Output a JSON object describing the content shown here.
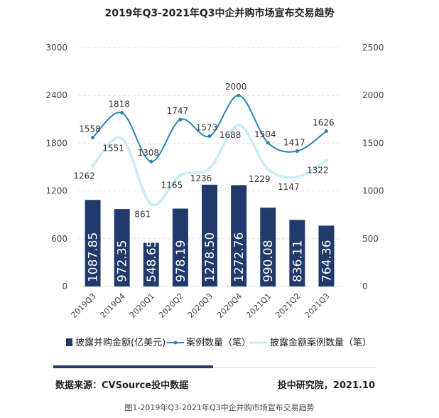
{
  "chart_data": {
    "type": "bar+line",
    "title": "2019年Q3-2021年Q3中企并购市场宣布交易趋势",
    "categories": [
      "2019Q3",
      "2019Q4",
      "2020Q1",
      "2020Q2",
      "2020Q3",
      "2020Q4",
      "2021Q1",
      "2021Q2",
      "2021Q3"
    ],
    "series": [
      {
        "name": "披露并购金额(亿美元)",
        "kind": "bar",
        "axis": "left",
        "color": "#1f3a6b",
        "values": [
          1087.85,
          972.35,
          548.65,
          978.19,
          1278.5,
          1272.76,
          990.08,
          836.11,
          764.36
        ]
      },
      {
        "name": "案例数量（笔）",
        "kind": "line",
        "axis": "right",
        "color": "#2b83b3",
        "values": [
          1558,
          1818,
          1308,
          1747,
          1573,
          2000,
          1504,
          1417,
          1626
        ]
      },
      {
        "name": "披露金额案例数量（笔）",
        "kind": "line",
        "axis": "right",
        "color": "#c9ecf7",
        "values": [
          1262,
          1551,
          861,
          1165,
          1236,
          1688,
          1229,
          1147,
          1322
        ]
      }
    ],
    "y_left": {
      "min": 0,
      "max": 3000,
      "ticks": [
        "0",
        "600",
        "1200",
        "1800",
        "2400",
        "3000"
      ]
    },
    "y_right": {
      "min": 0,
      "max": 2500,
      "ticks": [
        "0",
        "500",
        "1000",
        "1500",
        "2000",
        "2500"
      ]
    },
    "bar_labels": [
      "1087.85",
      "972.35",
      "548.65",
      "978.19",
      "1278.50",
      "1272.76",
      "990.08",
      "836.11",
      "764.36"
    ],
    "line1_labels": [
      "1558",
      "1818",
      "1308",
      "1747",
      "1573",
      "2000",
      "1504",
      "1417",
      "1626"
    ],
    "line2_labels": [
      "1262",
      "1551",
      "861",
      "1165",
      "1236",
      "1688",
      "1229",
      "1147",
      "1322"
    ],
    "legend_position": "bottom",
    "grid": true
  },
  "footer": {
    "source": "数据来源：CVSource投中数据",
    "credit": "投中研究院，2021.10",
    "caption": "图1-2019年Q3-2021年Q3中企并购市场宣布交易趋势"
  }
}
